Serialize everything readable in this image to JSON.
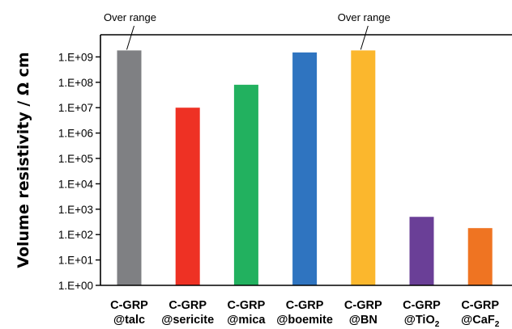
{
  "chart_data": {
    "type": "bar",
    "ylabel": "Volume resistivity / Ω cm",
    "yscale": "log",
    "ylim": [
      1,
      10000000000
    ],
    "yticks": [
      {
        "value": 1,
        "label": "1.E+00"
      },
      {
        "value": 10,
        "label": "1.E+01"
      },
      {
        "value": 100,
        "label": "1.E+02"
      },
      {
        "value": 1000,
        "label": "1.E+03"
      },
      {
        "value": 10000,
        "label": "1.E+04"
      },
      {
        "value": 100000,
        "label": "1.E+05"
      },
      {
        "value": 1000000,
        "label": "1.E+06"
      },
      {
        "value": 10000000,
        "label": "1.E+07"
      },
      {
        "value": 100000000,
        "label": "1.E+08"
      },
      {
        "value": 1000000000,
        "label": "1.E+09"
      }
    ],
    "grid": false,
    "legend": "none",
    "categories": [
      {
        "line1": "C-GRP",
        "line2": "@talc",
        "sub": ""
      },
      {
        "line1": "C-GRP",
        "line2": "@sericite",
        "sub": ""
      },
      {
        "line1": "C-GRP",
        "line2": "@mica",
        "sub": ""
      },
      {
        "line1": "C-GRP",
        "line2": "@boemite",
        "sub": ""
      },
      {
        "line1": "C-GRP",
        "line2": "@BN",
        "sub": ""
      },
      {
        "line1": "C-GRP",
        "line2": "@TiO",
        "sub": "2"
      },
      {
        "line1": "C-GRP",
        "line2": "@CaF",
        "sub": "2"
      }
    ],
    "values": [
      1800000000,
      10000000,
      80000000,
      1500000000,
      1800000000,
      500,
      180
    ],
    "colors": [
      "#7f8083",
      "#ee3124",
      "#22b15f",
      "#2f74c0",
      "#fbb72d",
      "#6a3f97",
      "#ef7422"
    ],
    "annotations": [
      {
        "text": "Over range",
        "category_index": 0
      },
      {
        "text": "Over range",
        "category_index": 4
      }
    ]
  }
}
